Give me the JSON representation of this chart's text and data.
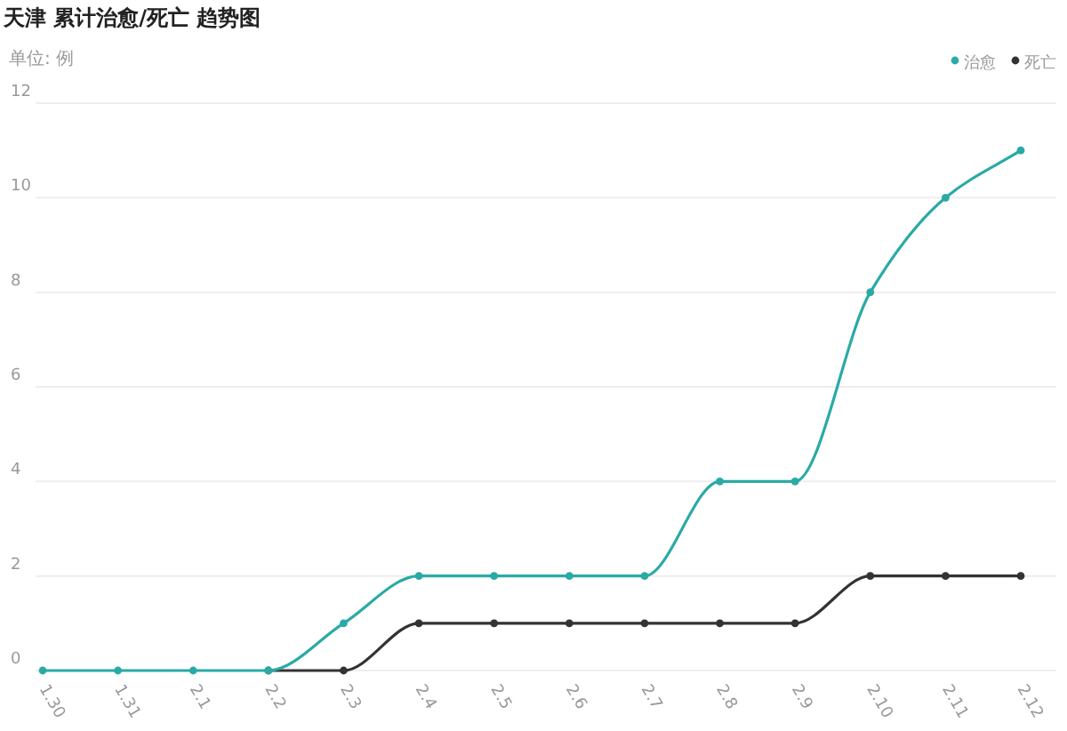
{
  "chart_data": {
    "type": "line",
    "title": "天津 累计治愈/死亡 趋势图",
    "ylabel": "单位: 例",
    "categories": [
      "1.30",
      "1.31",
      "2.1",
      "2.2",
      "2.3",
      "2.4",
      "2.5",
      "2.6",
      "2.7",
      "2.8",
      "2.9",
      "2.10",
      "2.11",
      "2.12"
    ],
    "series": [
      {
        "name": "治愈",
        "color": "#2aaaa6",
        "values": [
          0,
          0,
          0,
          0,
          1,
          2,
          2,
          2,
          2,
          4,
          4,
          8,
          10,
          11
        ]
      },
      {
        "name": "死亡",
        "color": "#333333",
        "values": [
          null,
          null,
          null,
          0,
          0,
          1,
          1,
          1,
          1,
          1,
          1,
          2,
          2,
          2
        ]
      }
    ],
    "ylim": [
      0,
      12
    ],
    "yticks": [
      0,
      2,
      4,
      6,
      8,
      10,
      12
    ],
    "grid": "y",
    "legend": "top right",
    "marker": "circle",
    "line_style": "solid"
  }
}
